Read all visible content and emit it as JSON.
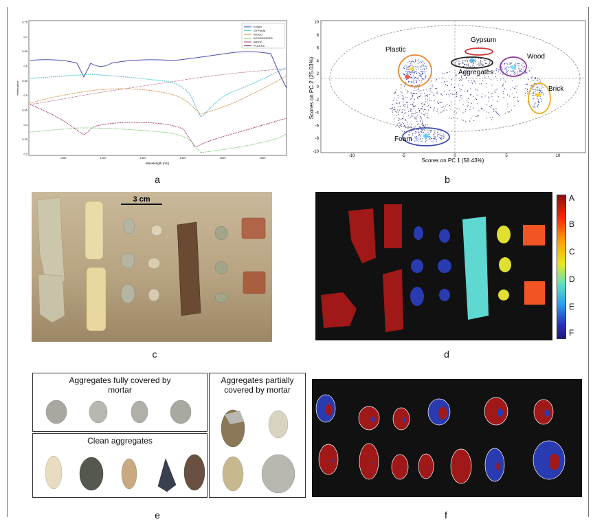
{
  "letters": {
    "a": "a",
    "b": "b",
    "c": "c",
    "d": "d",
    "e": "e",
    "f": "f"
  },
  "panel_a": {
    "ylabel": "Reflectance",
    "xlabel": "Wavelength (nm)",
    "xticks": [
      "1100",
      "1200",
      "1300",
      "1400",
      "1500",
      "1600"
    ],
    "yticks": [
      "0.75",
      "0.7",
      "0.65",
      "0.6",
      "0.55",
      "0.5",
      "0.45",
      "0.4",
      "0.35",
      "0.3"
    ],
    "legend": [
      "FOAM",
      "GYPSUM",
      "WOOD",
      "AGGREGATES",
      "BRICK",
      "PLASTIC"
    ],
    "colors": [
      "#4a4ab0",
      "#66c8dd",
      "#d08a3a",
      "#7bc870",
      "#a03070",
      "#9a3a7a"
    ]
  },
  "panel_b": {
    "xlabel": "Scores on PC 1 (58.43%)",
    "ylabel": "Scores on PC 2 (25.03%)",
    "xticks": [
      "-10",
      "-5",
      "0",
      "5",
      "10"
    ],
    "yticks": [
      "10",
      "8",
      "6",
      "4",
      "2",
      "0",
      "-2",
      "-4",
      "-6",
      "-8",
      "-10"
    ],
    "labels": {
      "plastic": "Plastic",
      "gypsum": "Gypsum",
      "aggregates": "Aggregates",
      "wood": "Wood",
      "brick": "Brick",
      "foam": "Foam"
    },
    "ellipse_colors": {
      "plastic": "#e8862a",
      "gypsum": "#d03030",
      "aggregates": "#222222",
      "wood": "#8a3a9a",
      "brick": "#e8b020",
      "foam": "#3a4ab0"
    }
  },
  "panel_c": {
    "scale": "3 cm"
  },
  "panel_d": {
    "colorbar": [
      "A",
      "B",
      "C",
      "D",
      "E",
      "F"
    ]
  },
  "panel_e": {
    "box1": "Aggregates fully covered by mortar",
    "box2": "Clean aggregates",
    "box3": "Aggregates partially covered by mortar"
  },
  "colors": {
    "classA": "#a01818",
    "classF": "#2a3ab0",
    "background": "#111111"
  }
}
